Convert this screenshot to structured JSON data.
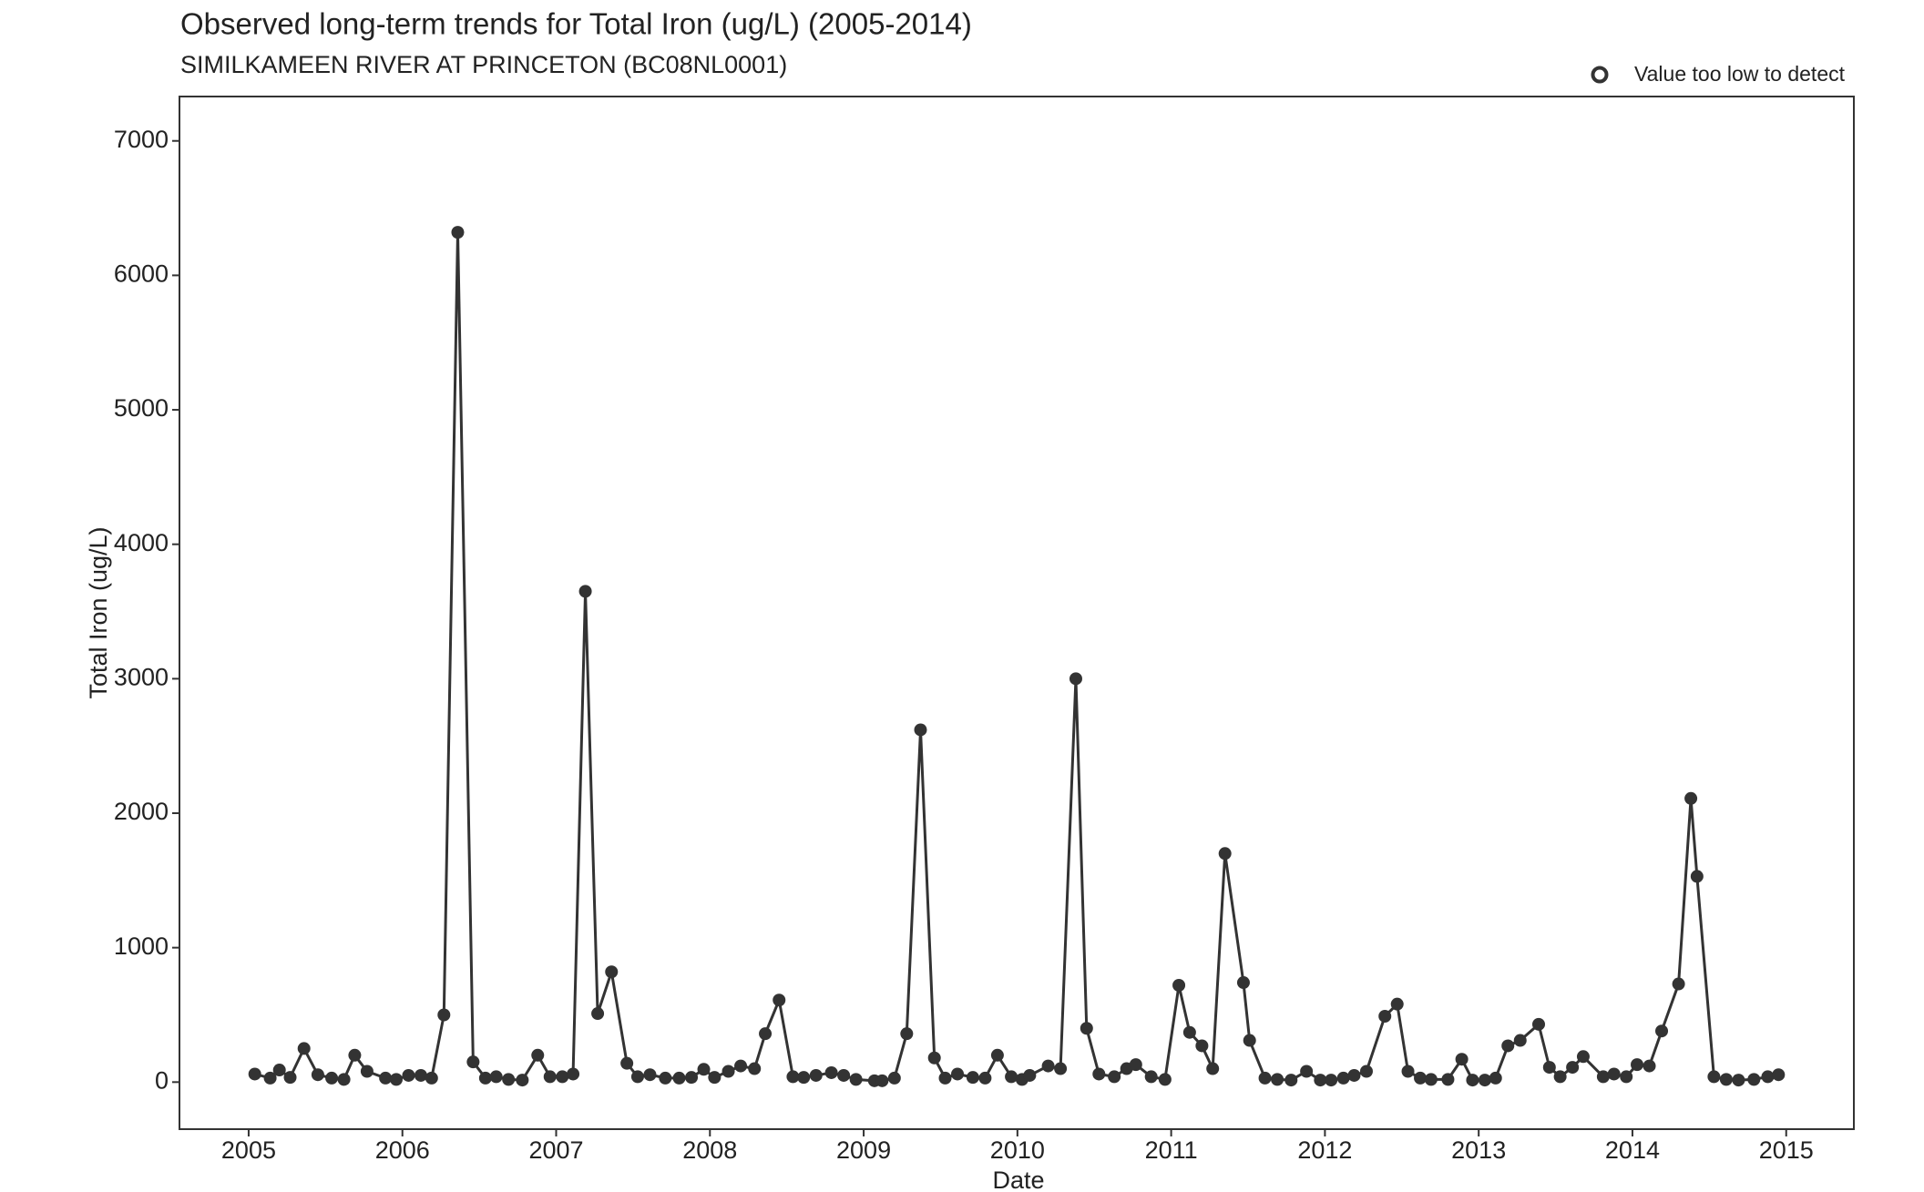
{
  "chart_data": {
    "type": "line",
    "title": "Observed long-term trends for Total Iron (ug/L) (2005-2014)",
    "subtitle": "SIMILKAMEEN RIVER AT PRINCETON (BC08NL0001)",
    "x_label": "Date",
    "y_label": "Total Iron (ug/L)",
    "legend": {
      "label": "Value too low to detect",
      "position": "top-right"
    },
    "grid": false,
    "xlim": [
      2004.55,
      2015.44
    ],
    "xticks": [
      2005,
      2006,
      2007,
      2008,
      2009,
      2010,
      2011,
      2012,
      2013,
      2014,
      2015
    ],
    "ylim": [
      -350,
      7330
    ],
    "yticks": [
      0,
      1000,
      2000,
      3000,
      4000,
      5000,
      6000,
      7000
    ],
    "series": [
      {
        "color": "#333333",
        "x": [
          2005.04,
          2005.14,
          2005.2,
          2005.27,
          2005.36,
          2005.45,
          2005.54,
          2005.62,
          2005.69,
          2005.77,
          2005.89,
          2005.96,
          2006.04,
          2006.12,
          2006.19,
          2006.27,
          2006.36,
          2006.46,
          2006.54,
          2006.61,
          2006.69,
          2006.78,
          2006.88,
          2006.96,
          2007.04,
          2007.11,
          2007.19,
          2007.27,
          2007.36,
          2007.46,
          2007.53,
          2007.61,
          2007.71,
          2007.8,
          2007.88,
          2007.96,
          2008.03,
          2008.12,
          2008.2,
          2008.29,
          2008.36,
          2008.45,
          2008.54,
          2008.61,
          2008.69,
          2008.79,
          2008.87,
          2008.95,
          2009.07,
          2009.12,
          2009.2,
          2009.28,
          2009.37,
          2009.46,
          2009.53,
          2009.61,
          2009.71,
          2009.79,
          2009.87,
          2009.96,
          2010.03,
          2010.08,
          2010.2,
          2010.28,
          2010.38,
          2010.45,
          2010.53,
          2010.63,
          2010.71,
          2010.77,
          2010.87,
          2010.96,
          2011.05,
          2011.12,
          2011.2,
          2011.27,
          2011.35,
          2011.47,
          2011.51,
          2011.61,
          2011.69,
          2011.78,
          2011.88,
          2011.97,
          2012.04,
          2012.12,
          2012.19,
          2012.27,
          2012.39,
          2012.47,
          2012.54,
          2012.62,
          2012.69,
          2012.8,
          2012.89,
          2012.96,
          2013.04,
          2013.11,
          2013.19,
          2013.27,
          2013.39,
          2013.46,
          2013.53,
          2013.61,
          2013.68,
          2013.81,
          2013.88,
          2013.96,
          2014.03,
          2014.11,
          2014.19,
          2014.3,
          2014.38,
          2014.42,
          2014.53,
          2014.61,
          2014.69,
          2014.79,
          2014.88,
          2014.95
        ],
        "values": [
          60,
          30,
          90,
          35,
          250,
          55,
          30,
          20,
          200,
          80,
          30,
          20,
          50,
          50,
          30,
          500,
          6320,
          150,
          30,
          40,
          20,
          15,
          200,
          40,
          40,
          60,
          3650,
          510,
          820,
          140,
          40,
          55,
          30,
          30,
          35,
          95,
          35,
          80,
          120,
          100,
          360,
          610,
          40,
          35,
          50,
          70,
          50,
          20,
          10,
          10,
          30,
          360,
          2620,
          180,
          30,
          60,
          35,
          30,
          200,
          40,
          20,
          50,
          120,
          100,
          3000,
          400,
          60,
          40,
          100,
          130,
          40,
          20,
          720,
          370,
          270,
          100,
          1700,
          740,
          310,
          30,
          20,
          15,
          80,
          15,
          15,
          30,
          50,
          80,
          490,
          580,
          80,
          30,
          20,
          20,
          170,
          15,
          15,
          30,
          270,
          310,
          430,
          110,
          40,
          110,
          190,
          40,
          60,
          40,
          130,
          120,
          380,
          730,
          2110,
          1530,
          40,
          20,
          15,
          20,
          40,
          55
        ]
      }
    ]
  }
}
